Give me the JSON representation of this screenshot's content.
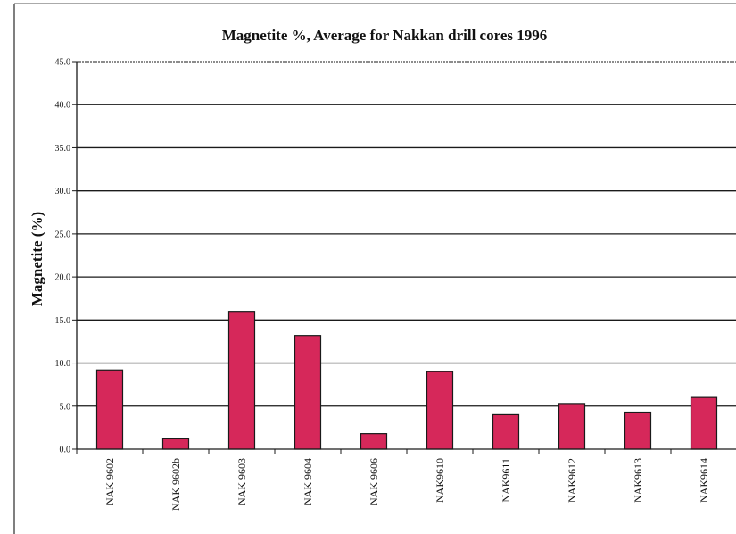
{
  "colors": {
    "bar_fill": "#d6285a",
    "bar_stroke": "#1a1a1a",
    "grid": "#1a1a1a",
    "axis": "#1a1a1a",
    "frame": "#555555"
  },
  "chart_data": {
    "type": "bar",
    "title": "Magnetite %, Average for Nakkan drill cores 1996",
    "xlabel": "",
    "ylabel": "Magnetite (%)",
    "ylim": [
      0,
      45
    ],
    "yticks": [
      "0.0",
      "5.0",
      "10.0",
      "15.0",
      "20.0",
      "25.0",
      "30.0",
      "35.0",
      "40.0",
      "45.0"
    ],
    "grid": true,
    "legend": "none",
    "categories": [
      "NAK 9602",
      "NAK 9602b",
      "NAK 9603",
      "NAK 9604",
      "NAK 9606",
      "NAK9610",
      "NAK9611",
      "NAK9612",
      "NAK9613",
      "NAK9614"
    ],
    "values": [
      9.2,
      1.2,
      16.0,
      13.2,
      1.8,
      9.0,
      4.0,
      5.3,
      4.3,
      6.0
    ]
  }
}
